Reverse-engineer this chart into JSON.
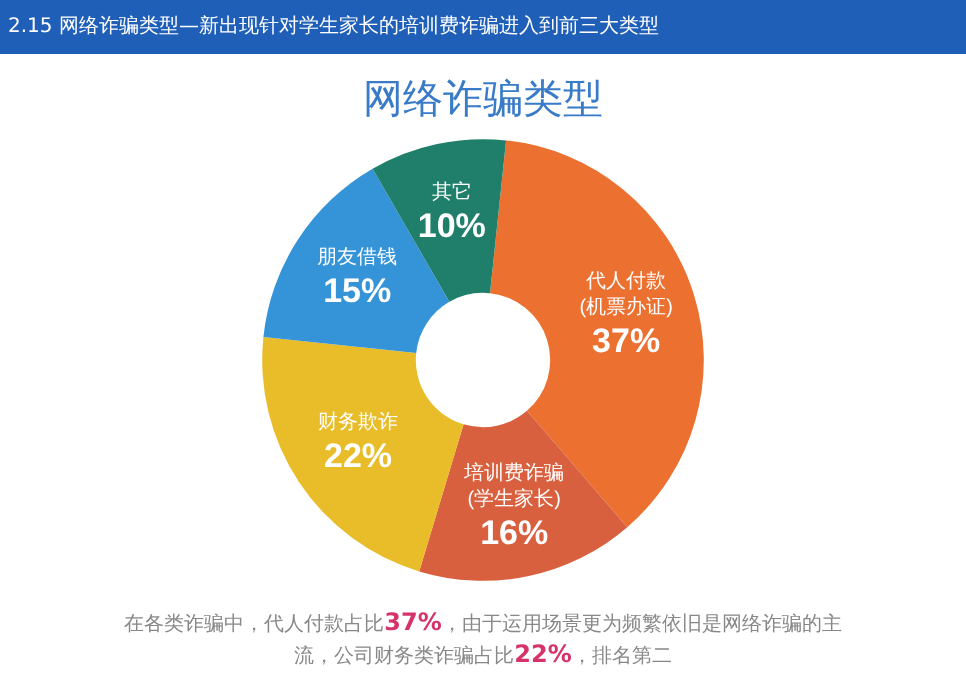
{
  "chart_data": {
    "type": "donut",
    "title": "2.15 网络诈骗类型—新出现针对学生家长的培训费诈骗进入到前三大类型",
    "subtitle": "网络诈骗类型",
    "categories": [
      "代人付款 (机票办证)",
      "培训费诈骗 (学生家长)",
      "财务欺诈",
      "朋友借钱",
      "其它"
    ],
    "values": [
      37,
      16,
      22,
      15,
      10
    ],
    "colors": [
      "#ec7030",
      "#d9603f",
      "#e9bd2a",
      "#3594d8",
      "#1f7f6a"
    ],
    "value_labels": [
      "37%",
      "16%",
      "22%",
      "15%",
      "10%"
    ],
    "legend": false,
    "annotations": [
      "在各类诈骗中，代人付款占比37%，由于运用场景更为频繁依旧是网络诈骗的主流，公司财务类诈骗占比22%，排名第二"
    ]
  }
}
